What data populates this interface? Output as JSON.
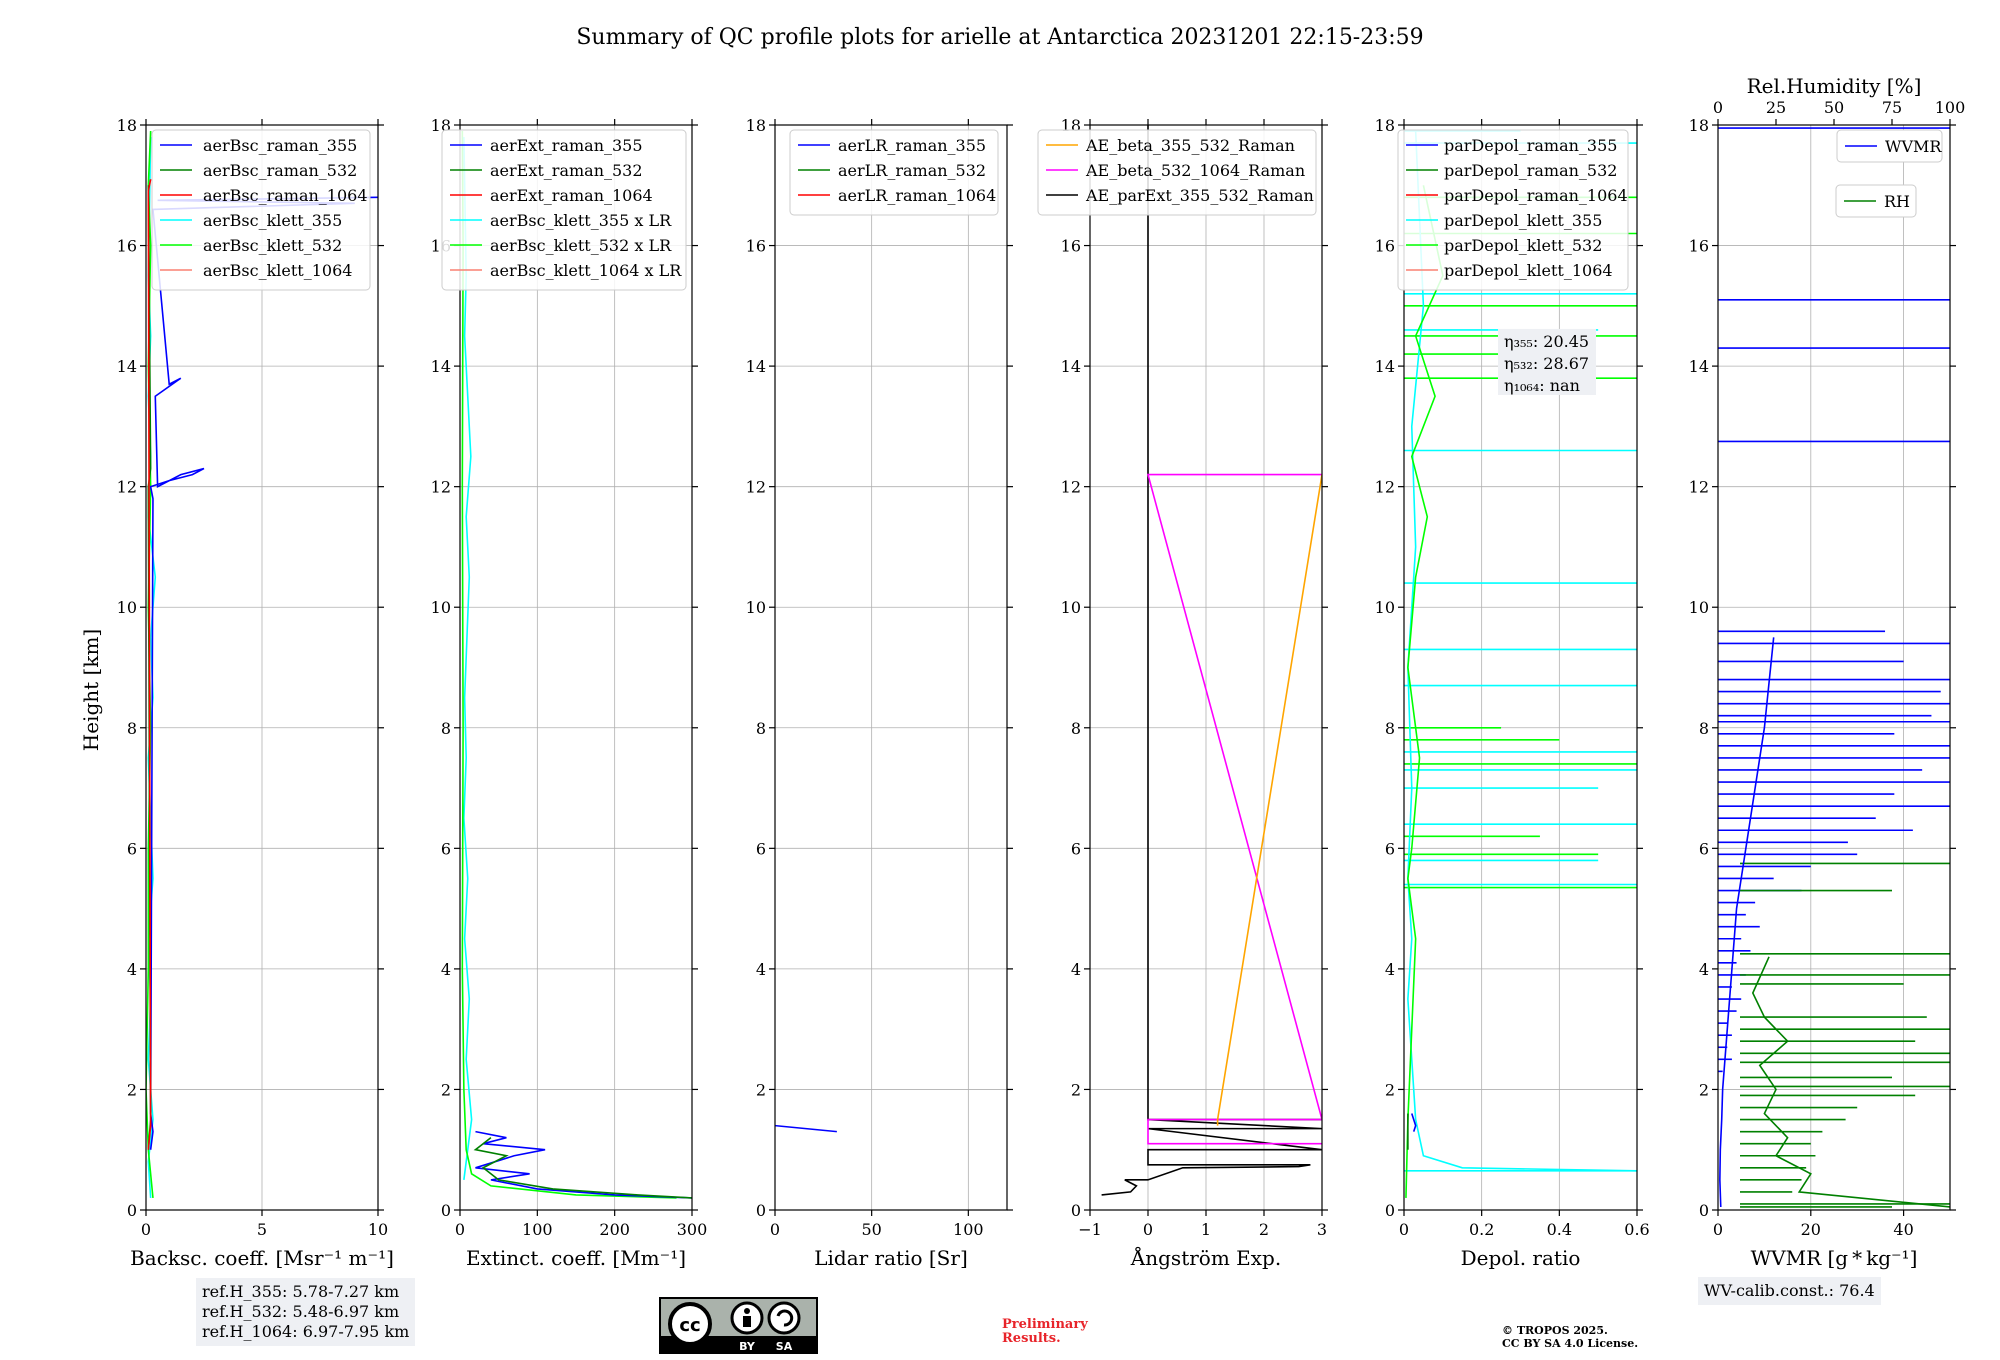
{
  "title": "Summary of QC profile plots for arielle at Antarctica 20231201 22:15-23:59",
  "ylabel": "Height [km]",
  "ylim": [
    0,
    18
  ],
  "yticks": [
    0,
    2,
    4,
    6,
    8,
    10,
    12,
    14,
    16,
    18
  ],
  "colors": {
    "raman_355": "#0000ff",
    "raman_532": "#008000",
    "raman_1064": "#ff0000",
    "klett_355": "#00ffff",
    "klett_532": "#00ff00",
    "klett_1064": "#fa8072",
    "orange": "#ffa500",
    "magenta": "#ff00ff",
    "black": "#000000"
  },
  "chart_data": [
    {
      "type": "line",
      "xlabel": "Backsc. coeff. [Msr⁻¹ m⁻¹]",
      "xlim": [
        0,
        10
      ],
      "xticks": [
        0,
        5,
        10
      ],
      "legend": [
        "aerBsc_raman_355",
        "aerBsc_raman_532",
        "aerBsc_raman_1064",
        "aerBsc_klett_355",
        "aerBsc_klett_532",
        "aerBsc_klett_1064"
      ],
      "series": [
        {
          "name": "aerBsc_klett_355",
          "color": "klett_355",
          "x": [
            0.2,
            0.1,
            0.3,
            0.1,
            0.2,
            0.1,
            0.3,
            0.2,
            0.1,
            0.3,
            0.2,
            0.4,
            0.1,
            0.2,
            0.1,
            0.2,
            0.1,
            0.2
          ],
          "y": [
            0.2,
            0.8,
            1.5,
            2.5,
            3.5,
            4.5,
            5.5,
            6.5,
            7.5,
            8.5,
            9.5,
            10.5,
            11.5,
            12.5,
            13.5,
            14.5,
            15.5,
            17.8
          ]
        },
        {
          "name": "aerBsc_klett_532",
          "color": "klett_532",
          "x": [
            0.3,
            0.1,
            0,
            0.1,
            0.1,
            0.2,
            0.1,
            0.2,
            0.1,
            0.2,
            0.1,
            0.2
          ],
          "y": [
            0.2,
            1.0,
            2,
            4,
            6,
            8,
            10,
            12,
            14,
            16,
            17,
            17.9
          ]
        },
        {
          "name": "aerBsc_raman_355",
          "color": "raman_355",
          "x": [
            0.2,
            0.3,
            0.2,
            0.3,
            0.2,
            1.0,
            2.0,
            2.5,
            1.5,
            0.5,
            0.4,
            1.5,
            1.0,
            0.3,
            9.0,
            0.5,
            10
          ],
          "y": [
            1.0,
            1.3,
            1.6,
            11.8,
            12.0,
            12.1,
            12.2,
            12.3,
            12.2,
            12.0,
            13.5,
            13.8,
            13.7,
            16.6,
            16.7,
            16.75,
            16.8
          ]
        },
        {
          "name": "aerBsc_raman_532",
          "color": "raman_532",
          "x": [
            0.1,
            0.2,
            0.1,
            0.2,
            0.1
          ],
          "y": [
            1.0,
            1.5,
            12.0,
            12.3,
            17.0
          ]
        },
        {
          "name": "aerBsc_raman_1064",
          "color": "raman_1064",
          "x": [
            0.1,
            0.2,
            0.1,
            0.2
          ],
          "y": [
            1.0,
            1.4,
            16.9,
            17.1
          ]
        }
      ]
    },
    {
      "type": "line",
      "xlabel": "Extinct. coeff. [Mm⁻¹]",
      "xlim": [
        0,
        300
      ],
      "xticks": [
        0,
        100,
        200,
        300
      ],
      "legend": [
        "aerExt_raman_355",
        "aerExt_raman_532",
        "aerExt_raman_1064",
        "aerBsc_klett_355 x LR",
        "aerBsc_klett_532 x LR",
        "aerBsc_klett_1064 x LR"
      ],
      "series": [
        {
          "name": "aerBsc_klett_355 x LR",
          "color": "klett_355",
          "x": [
            5,
            15,
            8,
            12,
            6,
            10,
            5,
            8,
            6,
            9,
            12,
            8,
            14,
            10,
            6,
            8,
            5
          ],
          "y": [
            0.5,
            1.5,
            2.5,
            3.5,
            4.5,
            5.5,
            6.5,
            7.5,
            8.5,
            9.5,
            10.5,
            11.5,
            12.5,
            13.5,
            14.5,
            15.5,
            17.8
          ]
        },
        {
          "name": "aerBsc_klett_532 x LR",
          "color": "klett_532",
          "x": [
            280,
            150,
            40,
            15,
            8,
            5,
            3,
            4,
            3,
            4,
            3
          ],
          "y": [
            0.2,
            0.25,
            0.4,
            0.6,
            1.0,
            2,
            4,
            8,
            12,
            16,
            17.9
          ]
        },
        {
          "name": "aerExt_raman_355",
          "color": "raman_355",
          "x": [
            300,
            200,
            100,
            40,
            90,
            20,
            70,
            110,
            30,
            60,
            20
          ],
          "y": [
            0.2,
            0.25,
            0.35,
            0.5,
            0.6,
            0.7,
            0.9,
            1.0,
            1.1,
            1.2,
            1.3
          ]
        },
        {
          "name": "aerExt_raman_532",
          "color": "raman_532",
          "x": [
            300,
            230,
            120,
            50,
            30,
            60,
            20,
            40
          ],
          "y": [
            0.2,
            0.25,
            0.35,
            0.5,
            0.7,
            0.9,
            1.0,
            1.2
          ]
        }
      ]
    },
    {
      "type": "line",
      "xlabel": "Lidar ratio [Sr]",
      "xlim": [
        0,
        120
      ],
      "xticks": [
        0,
        50,
        100
      ],
      "legend": [
        "aerLR_raman_355",
        "aerLR_raman_532",
        "aerLR_raman_1064"
      ],
      "series": [
        {
          "name": "aerLR_raman_355",
          "color": "raman_355",
          "x": [
            0,
            32
          ],
          "y": [
            1.4,
            1.3
          ]
        }
      ]
    },
    {
      "type": "line",
      "xlabel": "Ångström Exp.",
      "xlim": [
        -1,
        3
      ],
      "xticks": [
        -1,
        0,
        1,
        2,
        3
      ],
      "legend": [
        "AE_beta_355_532_Raman",
        "AE_beta_532_1064_Raman",
        "AE_parExt_355_532_Raman"
      ],
      "series": [
        {
          "name": "AE_parExt_355_532_Raman",
          "color": "black",
          "x": [
            -0.8,
            -0.3,
            -0.2,
            -0.4,
            -0.1,
            0,
            0.6,
            2.6,
            2.8,
            0,
            0,
            3,
            0,
            3,
            0,
            3,
            0,
            0
          ],
          "y": [
            0.25,
            0.3,
            0.4,
            0.5,
            0.5,
            0.5,
            0.7,
            0.72,
            0.75,
            0.75,
            1.0,
            1.0,
            1.35,
            1.35,
            1.5,
            1.5,
            1.5,
            18
          ]
        },
        {
          "name": "AE_beta_532_1064_Raman",
          "color": "magenta",
          "x": [
            0,
            3,
            0,
            0,
            3,
            0,
            3
          ],
          "y": [
            1.1,
            1.1,
            1.1,
            1.5,
            1.5,
            12.2,
            12.2
          ]
        },
        {
          "name": "AE_beta_355_532_Raman",
          "color": "orange",
          "x": [
            1.2,
            1.2,
            3
          ],
          "y": [
            1.4,
            1.5,
            12.2
          ]
        }
      ]
    },
    {
      "type": "line",
      "xlabel": "Depol. ratio",
      "xlim": [
        0,
        0.6
      ],
      "xticks": [
        0.0,
        0.2,
        0.4,
        0.6
      ],
      "legend": [
        "parDepol_raman_355",
        "parDepol_raman_532",
        "parDepol_raman_1064",
        "parDepol_klett_355",
        "parDepol_klett_532",
        "parDepol_klett_1064"
      ],
      "eta": [
        "η₃₅₅: 20.45",
        "η₅₃₂: 28.67",
        "η₁₀₆₄: nan"
      ],
      "spikes_355": [
        [
          0.65,
          0.6
        ],
        [
          5.4,
          0.6
        ],
        [
          5.8,
          0.5
        ],
        [
          6.4,
          0.6
        ],
        [
          7.0,
          0.5
        ],
        [
          7.3,
          0.6
        ],
        [
          7.6,
          0.6
        ],
        [
          8.7,
          0.6
        ],
        [
          9.3,
          0.6
        ],
        [
          10.4,
          0.6
        ],
        [
          12.6,
          0.6
        ],
        [
          14.6,
          0.5
        ],
        [
          15.2,
          0.6
        ],
        [
          17.7,
          0.6
        ],
        [
          17.9,
          0.3
        ]
      ],
      "spikes_532": [
        [
          5.35,
          0.6
        ],
        [
          5.9,
          0.5
        ],
        [
          6.2,
          0.35
        ],
        [
          7.4,
          0.6
        ],
        [
          7.8,
          0.4
        ],
        [
          8.0,
          0.25
        ],
        [
          13.8,
          0.6
        ],
        [
          14.2,
          0.4
        ],
        [
          14.5,
          0.6
        ],
        [
          15.0,
          0.6
        ],
        [
          16.2,
          0.6
        ],
        [
          16.8,
          0.6
        ]
      ],
      "series": [
        {
          "name": "parDepol_klett_355",
          "color": "klett_355",
          "x": [
            0.6,
            0.15,
            0.05,
            0.03,
            0.02,
            0.01,
            0.02,
            0.01,
            0.02,
            0.01,
            0.03,
            0.02,
            0.05,
            0.03
          ],
          "y": [
            0.65,
            0.7,
            0.9,
            1.5,
            2.5,
            3.5,
            4.5,
            5.5,
            7,
            9,
            11,
            13,
            15,
            17.9
          ]
        },
        {
          "name": "parDepol_klett_532",
          "color": "klett_532",
          "x": [
            0.005,
            0.01,
            0.02,
            0.03,
            0.01,
            0.02,
            0.04,
            0.01,
            0.03,
            0.06,
            0.02,
            0.08,
            0.03,
            0.1,
            0.05
          ],
          "y": [
            0.2,
            1.5,
            3,
            4.5,
            5.5,
            6,
            7.5,
            9,
            10.5,
            11.5,
            12.5,
            13.5,
            14.5,
            15.5,
            17
          ]
        },
        {
          "name": "parDepol_raman_355",
          "color": "raman_355",
          "x": [
            0.02,
            0.03,
            0.025
          ],
          "y": [
            1.6,
            1.4,
            1.3
          ]
        },
        {
          "name": "parDepol_raman_532",
          "color": "raman_532",
          "x": [
            0.01,
            0.01
          ],
          "y": [
            1.0,
            1.6
          ]
        }
      ]
    },
    {
      "type": "line",
      "xlabel": "WVMR [g * kg⁻¹]",
      "xlim": [
        0,
        50
      ],
      "xticks": [
        0,
        20,
        40
      ],
      "x2label": "Rel.Humidity [%]",
      "x2lim": [
        0,
        100
      ],
      "x2ticks": [
        0,
        25,
        50,
        75,
        100
      ],
      "legend": [
        "WVMR",
        "RH"
      ],
      "wvmr_spikes": [
        [
          17.95,
          50
        ],
        [
          15.1,
          50
        ],
        [
          14.3,
          50
        ],
        [
          12.75,
          50
        ],
        [
          9.6,
          36
        ],
        [
          9.4,
          50
        ],
        [
          9.1,
          40
        ],
        [
          8.8,
          50
        ],
        [
          8.6,
          48
        ],
        [
          8.4,
          50
        ],
        [
          8.2,
          46
        ],
        [
          8.1,
          50
        ],
        [
          7.9,
          38
        ],
        [
          7.7,
          50
        ],
        [
          7.5,
          50
        ],
        [
          7.3,
          44
        ],
        [
          7.1,
          50
        ],
        [
          6.9,
          38
        ],
        [
          6.7,
          50
        ],
        [
          6.5,
          34
        ],
        [
          6.3,
          42
        ],
        [
          6.1,
          28
        ],
        [
          5.9,
          30
        ],
        [
          5.7,
          20
        ],
        [
          5.5,
          12
        ],
        [
          5.3,
          18
        ],
        [
          5.1,
          8
        ],
        [
          4.9,
          6
        ],
        [
          4.7,
          9
        ],
        [
          4.5,
          5
        ],
        [
          4.3,
          7
        ],
        [
          4.1,
          4
        ],
        [
          3.9,
          6
        ],
        [
          3.7,
          3
        ],
        [
          3.5,
          5
        ],
        [
          3.3,
          4
        ],
        [
          3.1,
          2
        ],
        [
          2.9,
          3
        ],
        [
          2.7,
          2
        ],
        [
          2.5,
          3
        ],
        [
          2.3,
          1
        ]
      ],
      "rh_spikes": [
        [
          5.75,
          100
        ],
        [
          5.3,
          75
        ],
        [
          4.25,
          100
        ],
        [
          3.9,
          100
        ],
        [
          3.75,
          80
        ],
        [
          3.2,
          90
        ],
        [
          3.0,
          100
        ],
        [
          2.8,
          85
        ],
        [
          2.6,
          100
        ],
        [
          2.45,
          100
        ],
        [
          2.2,
          75
        ],
        [
          2.05,
          100
        ],
        [
          1.9,
          85
        ],
        [
          1.7,
          60
        ],
        [
          1.5,
          55
        ],
        [
          1.3,
          45
        ],
        [
          1.1,
          40
        ],
        [
          0.9,
          42
        ],
        [
          0.7,
          38
        ],
        [
          0.5,
          36
        ],
        [
          0.3,
          32
        ],
        [
          0.1,
          100
        ],
        [
          0.05,
          75
        ]
      ],
      "series": [
        {
          "name": "WVMR",
          "color": "raman_355",
          "x": [
            0.6,
            0.4,
            0.5,
            0.8,
            1.0,
            1.5,
            2,
            3,
            4,
            6,
            8,
            10,
            12
          ],
          "y": [
            0.05,
            0.5,
            1.0,
            1.5,
            2.0,
            2.5,
            3.0,
            4.0,
            5.0,
            6.0,
            7.0,
            8.0,
            9.5
          ]
        },
        {
          "name": "RH",
          "color": "raman_532",
          "x": [
            100,
            35,
            40,
            25,
            30,
            20,
            25,
            18,
            30,
            20,
            15,
            22
          ],
          "y": [
            0.05,
            0.3,
            0.6,
            0.9,
            1.2,
            1.6,
            2.0,
            2.4,
            2.8,
            3.2,
            3.6,
            4.2
          ]
        }
      ]
    }
  ],
  "annotations": {
    "ref_h": [
      "ref.H_355: 5.78-7.27 km",
      "ref.H_532: 5.48-6.97 km",
      "ref.H_1064: 6.97-7.95 km"
    ],
    "wv_calib": "WV-calib.const.: 76.4",
    "preliminary": [
      "Preliminary",
      "Results."
    ],
    "copyright": [
      "© TROPOS 2025.",
      "CC BY SA 4.0 License."
    ],
    "cc_badge": {
      "cc": "cc",
      "by": "BY",
      "sa": "SA"
    }
  }
}
